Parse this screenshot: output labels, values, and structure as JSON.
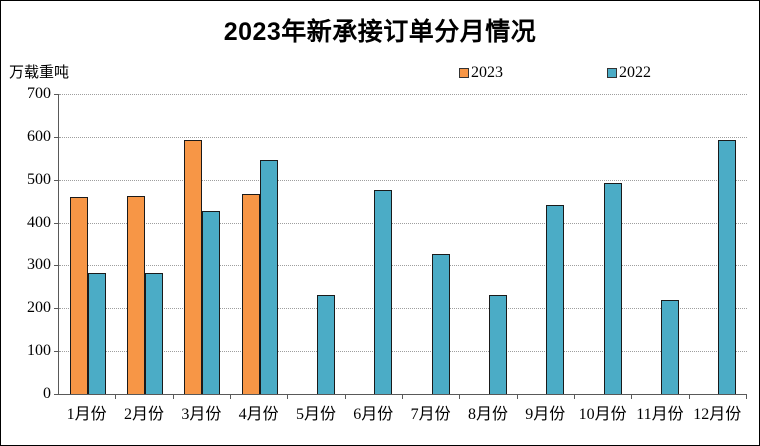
{
  "title": "2023年新承接订单分月情况",
  "y_unit_label": "万载重吨",
  "legend": {
    "items": [
      {
        "label": "2023",
        "color": "#F79646"
      },
      {
        "label": "2022",
        "color": "#4BACC6"
      }
    ]
  },
  "chart_data": {
    "type": "bar",
    "title": "2023年新承接订单分月情况",
    "ylabel": "万载重吨",
    "categories": [
      "1月份",
      "2月份",
      "3月份",
      "4月份",
      "5月份",
      "6月份",
      "7月份",
      "8月份",
      "9月份",
      "10月份",
      "11月份",
      "12月份"
    ],
    "series": [
      {
        "name": "2023",
        "color": "#F79646",
        "values": [
          460,
          462,
          593,
          466,
          null,
          null,
          null,
          null,
          null,
          null,
          null,
          null
        ]
      },
      {
        "name": "2022",
        "color": "#4BACC6",
        "values": [
          282,
          283,
          428,
          547,
          230,
          477,
          326,
          232,
          440,
          493,
          220,
          592
        ]
      }
    ],
    "ylim": [
      0,
      700
    ],
    "yticks": [
      0,
      100,
      200,
      300,
      400,
      500,
      600,
      700
    ],
    "grid": "horizontal-dotted",
    "legend_position": "top-right"
  },
  "colors": {
    "bar_border": "#1A1A1A",
    "gridline": "#9E9E9E",
    "axis": "#595959",
    "text": "#000000",
    "background": "#FFFFFF",
    "frame": "#000000"
  }
}
